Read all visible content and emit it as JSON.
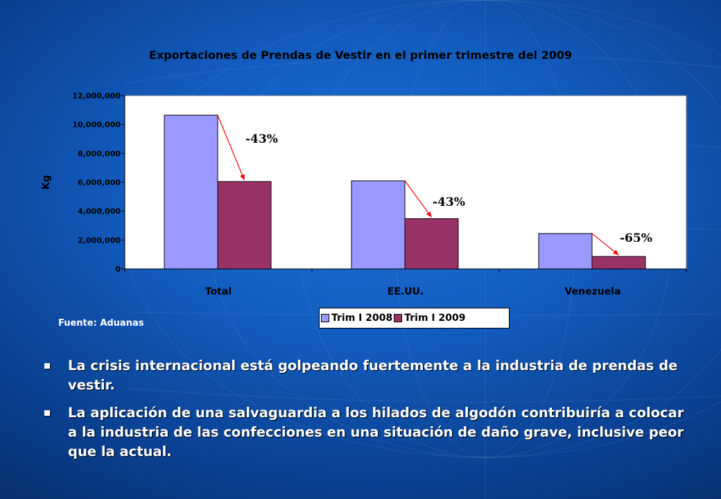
{
  "chart_data": {
    "type": "bar",
    "title": "Exportaciones de Prendas de Vestir en el primer trimestre del 2009",
    "ylabel": "Kg",
    "xlabel": "",
    "categories": [
      "Total",
      "EE.UU.",
      "Venezuela"
    ],
    "series": [
      {
        "name": "Trim I 2008",
        "values": [
          10650000,
          6100000,
          2450000
        ],
        "color": "#9999ff"
      },
      {
        "name": "Trim I 2009",
        "values": [
          6050000,
          3480000,
          860000
        ],
        "color": "#993366"
      }
    ],
    "ylim": [
      0,
      12000000
    ],
    "yticks": [
      {
        "value": 0,
        "label": "0"
      },
      {
        "value": 2000000,
        "label": "2,000,000"
      },
      {
        "value": 4000000,
        "label": "4,000,000"
      },
      {
        "value": 6000000,
        "label": "6,000,000"
      },
      {
        "value": 8000000,
        "label": "8,000,000"
      },
      {
        "value": 10000000,
        "label": "10,000,000"
      },
      {
        "value": 12000000,
        "label": "12,000,000"
      }
    ],
    "annotations": [
      "-43%",
      "-43%",
      "-65%"
    ],
    "annotation_color": "#000000",
    "arrow_color": "#ff0000",
    "grid": false,
    "legend_position": "bottom"
  },
  "source_note": "Fuente: Aduanas",
  "bullets": [
    "La crisis internacional está golpeando fuertemente a la industria de prendas de vestir.",
    "La aplicación de una salvaguardia a los hilados de algodón contribuiría a colocar a la industria de las confecciones en una situación de daño grave, inclusive peor que la actual."
  ],
  "colors": {
    "background": "#125cbf",
    "plot_area": "#ffffff",
    "text_light": "#ffffff",
    "text_dark": "#000000"
  }
}
